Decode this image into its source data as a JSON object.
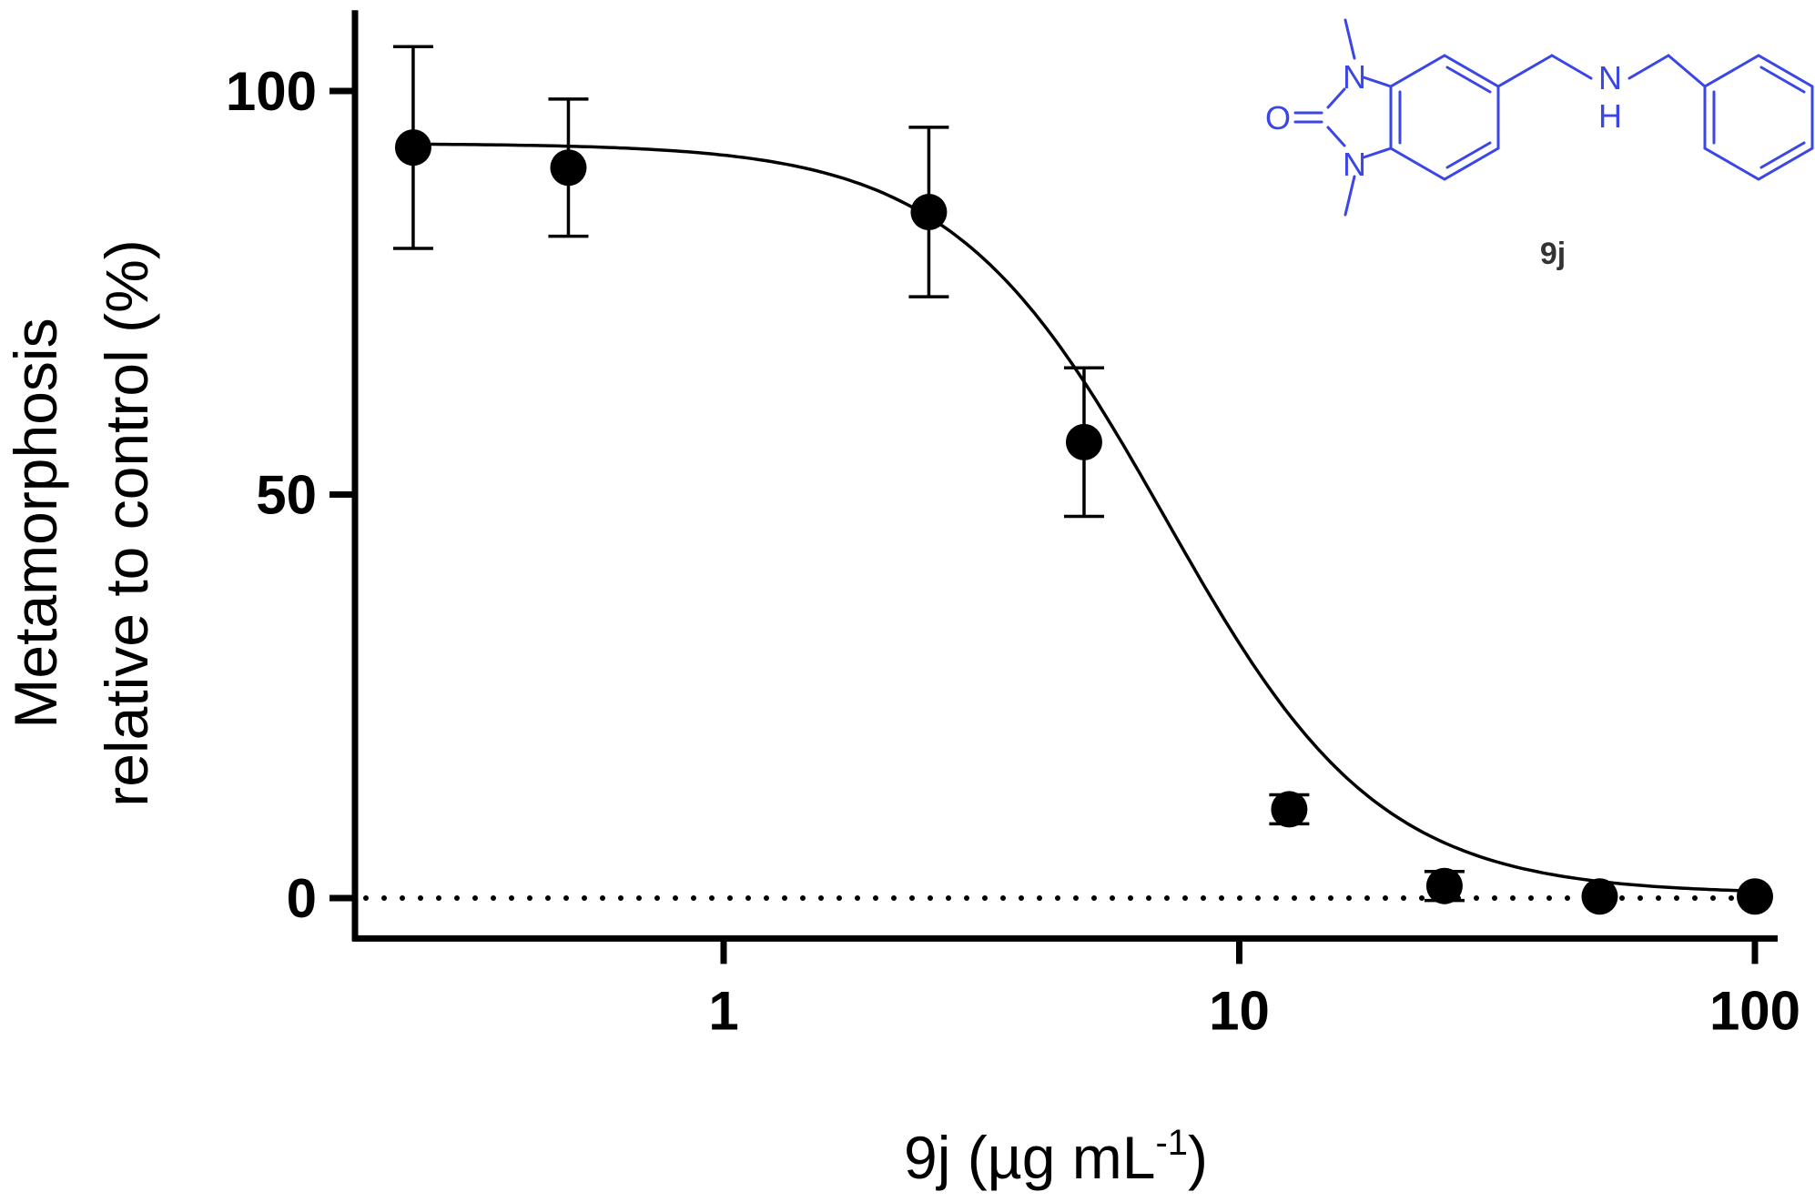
{
  "colors": {
    "structure": "#3b46e6",
    "data": "#000000",
    "background": "#ffffff"
  },
  "chart_data": {
    "type": "scatter",
    "xscale": "log",
    "xlim": [
      0.2,
      100
    ],
    "ylim": [
      -5,
      110
    ],
    "xlabel": {
      "main": "9j (µg mL",
      "sup": "-1",
      "close": ")"
    },
    "ylabel": {
      "line1": "Metamorphosis",
      "line2": "relative to control (%)"
    },
    "x_ticks": [
      {
        "value": 1,
        "label": "1"
      },
      {
        "value": 10,
        "label": "10"
      },
      {
        "value": 100,
        "label": "100"
      }
    ],
    "y_ticks": [
      {
        "value": 0,
        "label": "0"
      },
      {
        "value": 50,
        "label": "50"
      },
      {
        "value": 100,
        "label": "100"
      }
    ],
    "series": [
      {
        "x": [
          0.25,
          0.5,
          2.5,
          5,
          12.5,
          25,
          50,
          100
        ],
        "y": [
          93,
          90.5,
          85,
          56.5,
          11,
          1.5,
          0.2,
          0.2
        ],
        "error": [
          12.5,
          8.5,
          10.5,
          9.2,
          1.8,
          1.8,
          0,
          0
        ]
      }
    ],
    "fit_curve": {
      "type": "sigmoidal",
      "top": 93.5,
      "bottom": 0.5,
      "ec50": 7.2,
      "hill": 2.1
    },
    "reference_line": {
      "y": 0,
      "style": "dotted"
    },
    "inset": {
      "type": "chemical-structure",
      "label": "9j"
    }
  },
  "structure": {
    "atoms": {
      "n_top": "N",
      "n_bottom": "N",
      "o": "O",
      "nh_n": "N",
      "nh_h": "H"
    }
  }
}
